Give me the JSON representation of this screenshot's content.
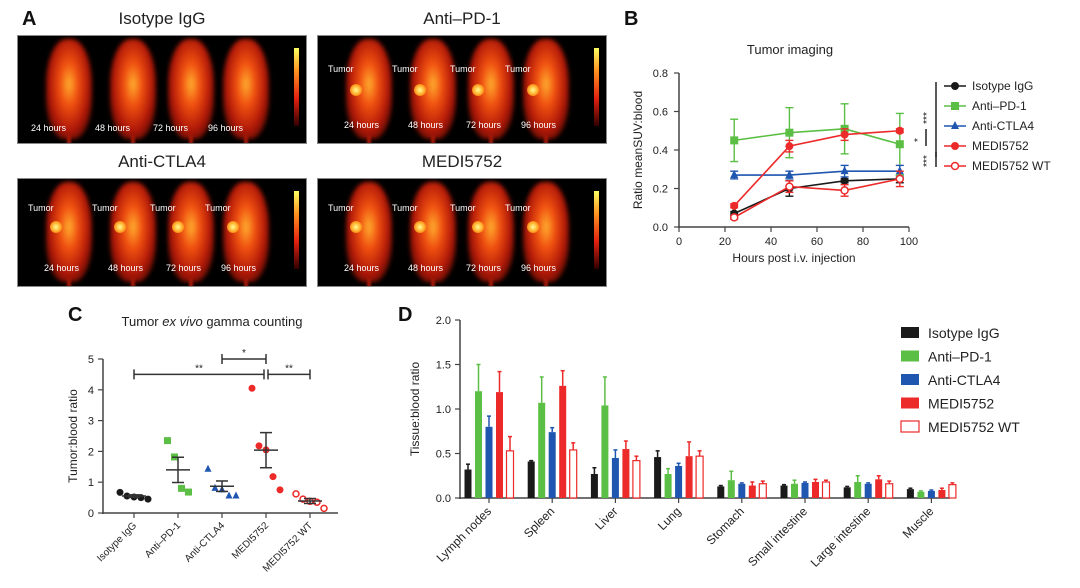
{
  "panels": {
    "a": "A",
    "b": "B",
    "c": "C",
    "d": "D"
  },
  "panel_a": {
    "images": [
      {
        "title": "Isotype IgG",
        "times": [
          "24 hours",
          "48 hours",
          "72 hours",
          "96 hours"
        ],
        "tumor_labels": []
      },
      {
        "title": "Anti–PD-1",
        "times": [
          "24 hours",
          "48 hours",
          "72 hours",
          "96 hours"
        ],
        "tumor_labels": [
          "Tumor",
          "Tumor",
          "Tumor",
          "Tumor"
        ]
      },
      {
        "title": "Anti-CTLA4",
        "times": [
          "24 hours",
          "48 hours",
          "72 hours",
          "96 hours"
        ],
        "tumor_labels": [
          "Tumor",
          "Tumor",
          "Tumor",
          "Tumor"
        ]
      },
      {
        "title": "MEDI5752",
        "times": [
          "24 hours",
          "48 hours",
          "72 hours",
          "96 hours"
        ],
        "tumor_labels": [
          "Tumor",
          "Tumor",
          "Tumor",
          "Tumor"
        ]
      }
    ]
  },
  "colors": {
    "Isotype IgG": "#1a1a1a",
    "Anti–PD-1": "#5cbf45",
    "Anti-CTLA4": "#1f56b0",
    "MEDI5752": "#ec2a2a",
    "MEDI5752 WT": "#ec2a2a"
  },
  "chart_data": [
    {
      "type": "line",
      "title": "Tumor imaging",
      "xlabel": "Hours post i.v. injection",
      "ylabel": "Ratio meanSUV:blood",
      "xlim": [
        0,
        100
      ],
      "ylim": [
        0,
        0.8
      ],
      "xticks": [
        "0",
        "20",
        "40",
        "60",
        "80",
        "100"
      ],
      "yticks": [
        "0.0",
        "0.2",
        "0.4",
        "0.6",
        "0.8"
      ],
      "x": [
        24,
        48,
        72,
        96
      ],
      "legend": "right",
      "series": [
        {
          "name": "Isotype IgG",
          "values": [
            0.07,
            0.2,
            0.24,
            0.25
          ],
          "err": [
            0.01,
            0.04,
            0.01,
            0.02
          ],
          "marker": "circle"
        },
        {
          "name": "Anti–PD-1",
          "values": [
            0.45,
            0.49,
            0.51,
            0.43
          ],
          "err": [
            0.11,
            0.13,
            0.13,
            0.16
          ],
          "marker": "square"
        },
        {
          "name": "Anti-CTLA4",
          "values": [
            0.27,
            0.27,
            0.29,
            0.29
          ],
          "err": [
            0.02,
            0.02,
            0.03,
            0.03
          ],
          "marker": "triangle"
        },
        {
          "name": "MEDI5752",
          "values": [
            0.11,
            0.42,
            0.48,
            0.5
          ],
          "err": [
            0.01,
            0.03,
            0.03,
            0.01
          ],
          "marker": "circle"
        },
        {
          "name": "MEDI5752 WT",
          "values": [
            0.05,
            0.21,
            0.19,
            0.25
          ],
          "err": [
            0.01,
            0.03,
            0.03,
            0.04
          ],
          "marker": "open-circle"
        }
      ],
      "significance": [
        "***",
        "*",
        "***"
      ]
    },
    {
      "type": "scatter",
      "title_pre": "Tumor ",
      "title_italic": "ex vivo",
      "title_post": " gamma counting",
      "ylabel": "Tumor:blood ratio",
      "ylim": [
        0,
        5
      ],
      "yticks": [
        "0",
        "1",
        "2",
        "3",
        "4",
        "5"
      ],
      "categories": [
        "Isotype IgG",
        "Anti–PD-1",
        "Anti-CTLA4",
        "MEDI5752",
        "MEDI5752 WT"
      ],
      "points": [
        [
          0.67,
          0.55,
          0.52,
          0.5,
          0.45
        ],
        [
          2.35,
          1.82,
          0.8,
          0.68
        ],
        [
          1.42,
          0.8,
          0.75,
          0.55,
          0.55
        ],
        [
          4.05,
          2.18,
          2.05,
          1.18,
          0.75
        ],
        [
          0.62,
          0.45,
          0.38,
          0.35,
          0.15
        ]
      ],
      "mean": [
        0.55,
        1.4,
        0.87,
        2.04,
        0.39
      ],
      "sem": [
        0.04,
        0.41,
        0.17,
        0.57,
        0.08
      ],
      "significance": [
        {
          "from": 0,
          "to": 3,
          "y": 4.5,
          "label": "**"
        },
        {
          "from": 2,
          "to": 3,
          "y": 5.0,
          "label": "*"
        },
        {
          "from": 3,
          "to": 4,
          "y": 4.5,
          "label": "**"
        }
      ]
    },
    {
      "type": "bar",
      "ylabel": "Tissue:blood ratio",
      "ylim": [
        0,
        2.0
      ],
      "yticks": [
        "0.0",
        "0.5",
        "1.0",
        "1.5",
        "2.0"
      ],
      "legend": "top-right",
      "categories": [
        "Lymph nodes",
        "Spleen",
        "Liver",
        "Lung",
        "Stomach",
        "Small intestine",
        "Large intestine",
        "Muscle"
      ],
      "series": [
        {
          "name": "Isotype IgG",
          "values": [
            0.32,
            0.41,
            0.27,
            0.46,
            0.13,
            0.14,
            0.12,
            0.1
          ],
          "err": [
            0.06,
            0.01,
            0.07,
            0.07,
            0.01,
            0.01,
            0.01,
            0.01
          ]
        },
        {
          "name": "Anti–PD-1",
          "values": [
            1.2,
            1.07,
            1.04,
            0.27,
            0.2,
            0.16,
            0.18,
            0.07
          ],
          "err": [
            0.3,
            0.29,
            0.32,
            0.06,
            0.1,
            0.04,
            0.07,
            0.01
          ]
        },
        {
          "name": "Anti-CTLA4",
          "values": [
            0.8,
            0.74,
            0.45,
            0.36,
            0.16,
            0.17,
            0.16,
            0.08
          ],
          "err": [
            0.12,
            0.05,
            0.09,
            0.03,
            0.01,
            0.01,
            0.01,
            0.01
          ]
        },
        {
          "name": "MEDI5752",
          "values": [
            1.19,
            1.26,
            0.55,
            0.47,
            0.14,
            0.18,
            0.21,
            0.09
          ],
          "err": [
            0.23,
            0.17,
            0.09,
            0.16,
            0.04,
            0.03,
            0.04,
            0.02
          ]
        },
        {
          "name": "MEDI5752 WT",
          "values": [
            0.53,
            0.54,
            0.42,
            0.47,
            0.16,
            0.18,
            0.16,
            0.15
          ],
          "err": [
            0.16,
            0.08,
            0.05,
            0.06,
            0.03,
            0.02,
            0.03,
            0.02
          ],
          "open": true
        }
      ]
    }
  ]
}
